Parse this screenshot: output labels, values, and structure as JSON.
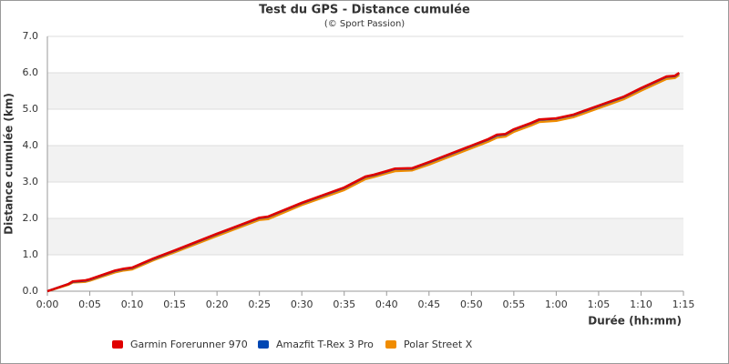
{
  "chart_data": {
    "type": "line",
    "title": "Test du GPS - Distance cumulée",
    "subtitle": "(© Sport Passion)",
    "x_label": "Durée (hh:mm)",
    "y_label": "Distance cumulée (km)",
    "x": [
      0,
      2.5,
      3,
      4.5,
      5,
      8,
      9,
      10,
      12.5,
      15,
      20,
      25,
      26,
      30,
      35,
      37.5,
      38.5,
      40,
      41,
      43,
      45,
      50,
      52,
      53,
      54,
      55,
      57,
      58,
      60,
      62,
      65,
      68,
      70,
      73,
      74,
      74.5
    ],
    "series": [
      {
        "name": "Garmin Forerunner 970",
        "color": "#e00000",
        "values": [
          0,
          0.2,
          0.27,
          0.3,
          0.33,
          0.57,
          0.62,
          0.65,
          0.9,
          1.12,
          1.58,
          2.02,
          2.05,
          2.43,
          2.85,
          3.15,
          3.2,
          3.3,
          3.37,
          3.38,
          3.55,
          4.0,
          4.18,
          4.3,
          4.32,
          4.45,
          4.62,
          4.72,
          4.75,
          4.85,
          5.1,
          5.35,
          5.58,
          5.9,
          5.92,
          6.0
        ]
      },
      {
        "name": "Amazfit T-Rex 3 Pro",
        "color": "#0047b3",
        "values": [
          0,
          0.2,
          0.26,
          0.29,
          0.32,
          0.56,
          0.61,
          0.64,
          0.89,
          1.11,
          1.57,
          2.01,
          2.04,
          2.42,
          2.84,
          3.14,
          3.19,
          3.29,
          3.36,
          3.37,
          3.54,
          3.99,
          4.17,
          4.28,
          4.31,
          4.44,
          4.61,
          4.71,
          4.74,
          4.84,
          5.09,
          5.34,
          5.57,
          5.89,
          5.91,
          5.99
        ]
      },
      {
        "name": "Polar Street X",
        "color": "#f08c00",
        "values": [
          0,
          0.18,
          0.24,
          0.26,
          0.29,
          0.52,
          0.57,
          0.6,
          0.85,
          1.07,
          1.52,
          1.96,
          1.98,
          2.37,
          2.78,
          3.08,
          3.14,
          3.24,
          3.3,
          3.32,
          3.48,
          3.93,
          4.11,
          4.22,
          4.25,
          4.38,
          4.55,
          4.65,
          4.68,
          4.78,
          5.03,
          5.28,
          5.51,
          5.83,
          5.86,
          5.94
        ]
      }
    ],
    "xlim": [
      0,
      75
    ],
    "xticks": [
      {
        "value": 0,
        "label": "0:00"
      },
      {
        "value": 5,
        "label": "0:05"
      },
      {
        "value": 10,
        "label": "0:10"
      },
      {
        "value": 15,
        "label": "0:15"
      },
      {
        "value": 20,
        "label": "0:20"
      },
      {
        "value": 25,
        "label": "0:25"
      },
      {
        "value": 30,
        "label": "0:30"
      },
      {
        "value": 35,
        "label": "0:35"
      },
      {
        "value": 40,
        "label": "0:40"
      },
      {
        "value": 45,
        "label": "0:45"
      },
      {
        "value": 50,
        "label": "0:50"
      },
      {
        "value": 55,
        "label": "0:55"
      },
      {
        "value": 60,
        "label": "1:00"
      },
      {
        "value": 65,
        "label": "1:05"
      },
      {
        "value": 70,
        "label": "1:10"
      },
      {
        "value": 75,
        "label": "1:15"
      }
    ],
    "ylim": [
      0,
      7
    ],
    "yticks": [
      {
        "value": 0,
        "label": "0.0"
      },
      {
        "value": 1,
        "label": "1.0"
      },
      {
        "value": 2,
        "label": "2.0"
      },
      {
        "value": 3,
        "label": "3.0"
      },
      {
        "value": 4,
        "label": "4.0"
      },
      {
        "value": 5,
        "label": "5.0"
      },
      {
        "value": 6,
        "label": "6.0"
      },
      {
        "value": 7,
        "label": "7.0"
      }
    ],
    "grid_bands": true,
    "legend": "bottom"
  }
}
